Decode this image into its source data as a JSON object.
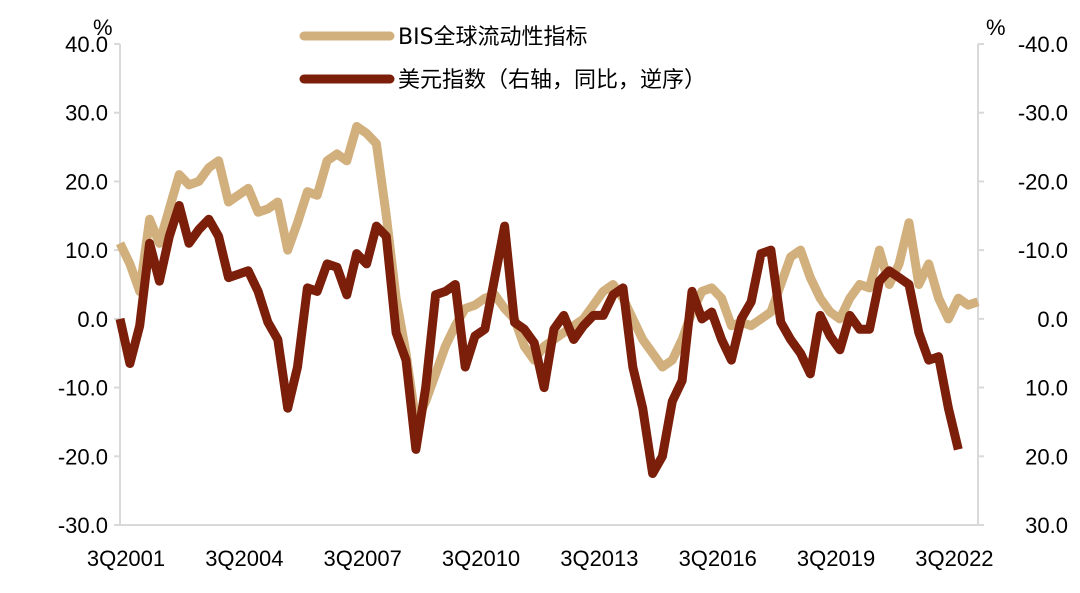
{
  "chart_data": {
    "type": "line",
    "left_axis": {
      "unit": "%",
      "ylim": [
        -30,
        40
      ],
      "ticks": [
        "40.0",
        "30.0",
        "20.0",
        "10.0",
        "0.0",
        "-10.0",
        "-20.0",
        "-30.0"
      ]
    },
    "right_axis": {
      "unit": "%",
      "ylim": [
        -40,
        30
      ],
      "inverted": true,
      "ticks": [
        "-40.0",
        "-30.0",
        "-20.0",
        "-10.0",
        "0.0",
        "10.0",
        "20.0",
        "30.0"
      ]
    },
    "x_tick_labels": [
      "3Q2001",
      "3Q2004",
      "3Q2007",
      "3Q2010",
      "3Q2013",
      "3Q2016",
      "3Q2019",
      "3Q2022"
    ],
    "x_tick_positions": [
      0,
      12,
      24,
      36,
      48,
      60,
      72,
      84
    ],
    "grid": false,
    "legend_position": "top-center",
    "series": [
      {
        "name": "BIS全球流动性指标",
        "axis": "left",
        "color": "#d2b07e",
        "values": [
          11,
          8,
          4,
          14.5,
          11,
          16,
          21,
          19.5,
          20,
          22,
          23,
          17,
          18,
          19,
          15.5,
          16,
          17,
          10,
          14,
          18.5,
          18,
          23,
          24,
          23,
          28,
          27,
          25.5,
          15,
          3,
          -5,
          -15,
          -12,
          -8,
          -4,
          -1,
          1.5,
          2,
          3,
          3.5,
          1.5,
          0,
          -4,
          -6,
          -4,
          -3,
          -2,
          -1,
          0,
          2,
          4,
          5,
          3,
          0,
          -3,
          -5,
          -7,
          -6,
          -3,
          1,
          4,
          4.5,
          3,
          -1,
          -0.5,
          -1,
          0,
          1,
          5,
          9,
          10,
          6,
          3,
          1,
          0,
          3,
          5,
          4.5,
          10,
          5,
          8,
          14,
          5,
          8,
          3,
          0,
          3,
          2,
          2.5
        ]
      },
      {
        "name": "美元指数（右轴，同比，逆序）",
        "axis": "right",
        "color": "#7b1e0a",
        "values": [
          0,
          6.5,
          1,
          -11,
          -5.5,
          -12,
          -16.5,
          -11,
          -13,
          -14.5,
          -12,
          -6,
          -6.5,
          -7,
          -4,
          0.5,
          3,
          13,
          7,
          -4.5,
          -4,
          -8,
          -7.5,
          -3.5,
          -9.5,
          -8,
          -13.5,
          -12,
          2,
          6,
          19,
          10,
          -3.5,
          -4,
          -5,
          7,
          2.5,
          1.5,
          -6,
          -13.5,
          0.5,
          1.5,
          3.5,
          10,
          1.5,
          -0.5,
          3,
          1,
          -0.5,
          -0.5,
          -3.5,
          -4.5,
          7,
          13,
          22.5,
          20,
          12,
          9,
          -4,
          0,
          -1,
          3,
          6,
          0,
          -2.5,
          -9.5,
          -10,
          0.5,
          3,
          5,
          8,
          -0.5,
          2.5,
          4.5,
          -0.5,
          1.5,
          1.5,
          -5.5,
          -7,
          -6,
          -5,
          2,
          6,
          5.5,
          13,
          19
        ]
      }
    ]
  }
}
